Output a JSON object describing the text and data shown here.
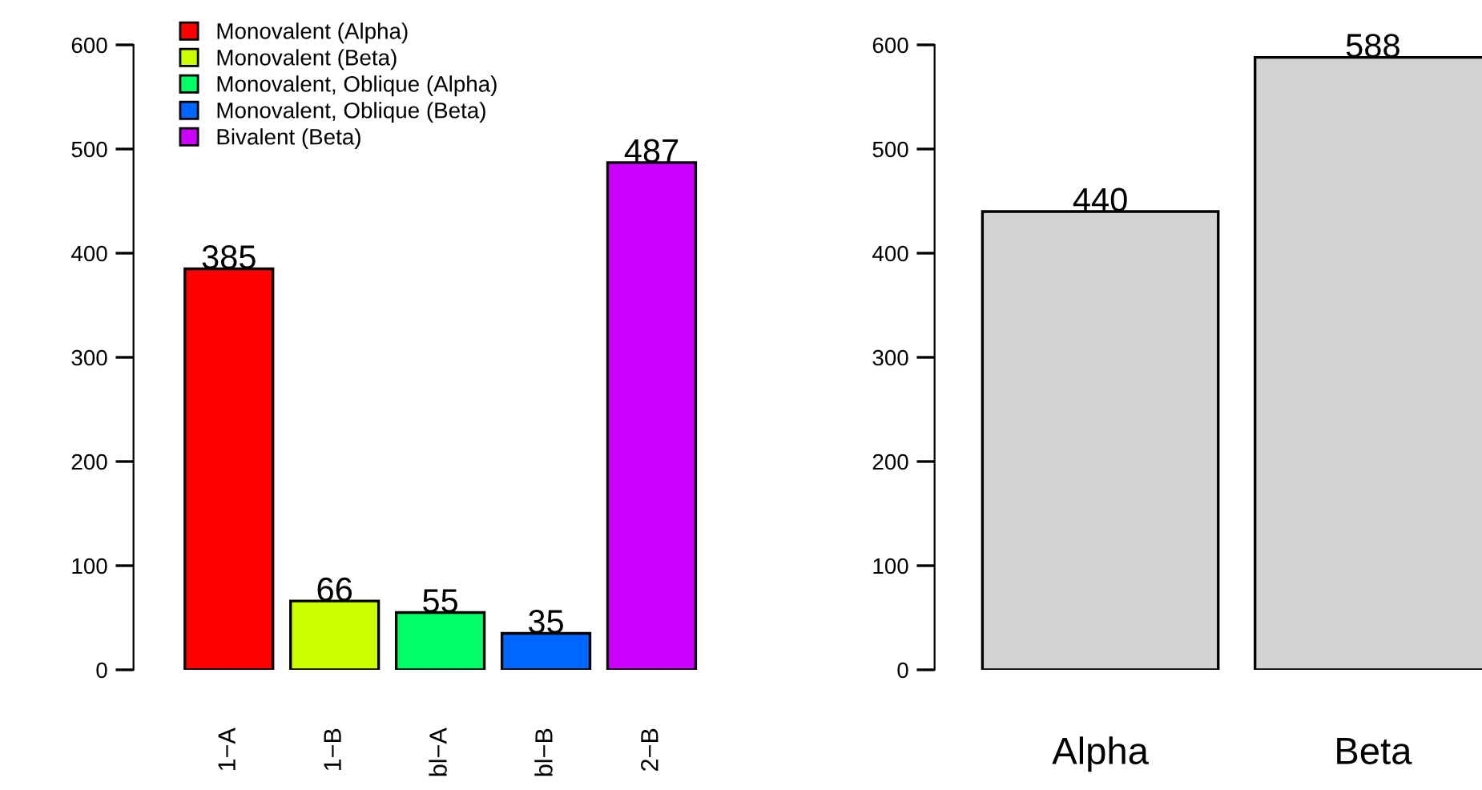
{
  "chart_data": [
    {
      "type": "bar",
      "categories": [
        "1−A",
        "1−B",
        "bl−A",
        "bl−B",
        "2−B"
      ],
      "series": [
        {
          "name": "Monovalent (Alpha)",
          "color": "#ff0000",
          "values": [
            385,
            null,
            null,
            null,
            null
          ]
        },
        {
          "name": "Monovalent (Beta)",
          "color": "#ccff00",
          "values": [
            null,
            66,
            null,
            null,
            null
          ]
        },
        {
          "name": "Monovalent, Oblique (Alpha)",
          "color": "#00ff66",
          "values": [
            null,
            null,
            55,
            null,
            null
          ]
        },
        {
          "name": "Monovalent, Oblique (Beta)",
          "color": "#0066ff",
          "values": [
            null,
            null,
            null,
            35,
            null
          ]
        },
        {
          "name": "Bivalent (Beta)",
          "color": "#cc00ff",
          "values": [
            null,
            null,
            null,
            null,
            487
          ]
        }
      ],
      "ylim": [
        0,
        600
      ],
      "yticks": [
        0,
        100,
        200,
        300,
        400,
        500,
        600
      ],
      "data_labels": true,
      "legend": "top left",
      "grid": false
    },
    {
      "type": "bar",
      "categories": [
        "Alpha",
        "Beta"
      ],
      "values": [
        440,
        588
      ],
      "color": "#d3d3d3",
      "ylim": [
        0,
        600
      ],
      "yticks": [
        0,
        100,
        200,
        300,
        400,
        500,
        600
      ],
      "data_labels": true,
      "grid": false
    }
  ]
}
